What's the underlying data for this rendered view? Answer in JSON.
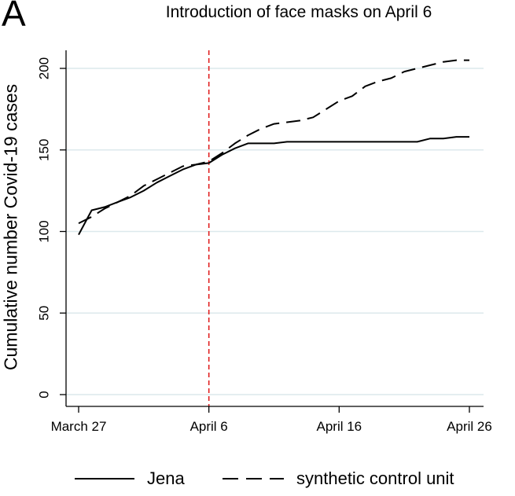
{
  "panel_letter": "A",
  "chart_data": {
    "type": "line",
    "title": "Introduction of face masks on April 6",
    "xlabel": "",
    "ylabel": "Cumulative number Covid-19 cases",
    "xlim": [
      "March 27",
      "April 26"
    ],
    "ylim": [
      0,
      210
    ],
    "xticks": [
      "March 27",
      "April 6",
      "April 16",
      "April 26"
    ],
    "yticks": [
      0,
      50,
      100,
      150,
      200
    ],
    "grid": "horizontal",
    "vertical_marker": {
      "x": "April 6",
      "color": "#e02020",
      "style": "dashed"
    },
    "legend_position": "bottom",
    "x": [
      "March 27",
      "March 28",
      "March 29",
      "March 30",
      "March 31",
      "April 1",
      "April 2",
      "April 3",
      "April 4",
      "April 5",
      "April 6",
      "April 7",
      "April 8",
      "April 9",
      "April 10",
      "April 11",
      "April 12",
      "April 13",
      "April 14",
      "April 15",
      "April 16",
      "April 17",
      "April 18",
      "April 19",
      "April 20",
      "April 21",
      "April 22",
      "April 23",
      "April 24",
      "April 25",
      "April 26"
    ],
    "series": [
      {
        "name": "Jena",
        "style": "solid",
        "values": [
          98,
          113,
          115,
          118,
          121,
          125,
          130,
          134,
          138,
          141,
          142,
          147,
          151,
          154,
          154,
          154,
          155,
          155,
          155,
          155,
          155,
          155,
          155,
          155,
          155,
          155,
          155,
          157,
          157,
          158,
          158
        ]
      },
      {
        "name": "synthetic control unit",
        "style": "dashed",
        "values": [
          105,
          109,
          114,
          118,
          122,
          128,
          132,
          136,
          140,
          141,
          143,
          148,
          154,
          159,
          163,
          166,
          167,
          168,
          170,
          175,
          180,
          183,
          189,
          192,
          194,
          198,
          200,
          202,
          204,
          205,
          205
        ]
      }
    ]
  }
}
